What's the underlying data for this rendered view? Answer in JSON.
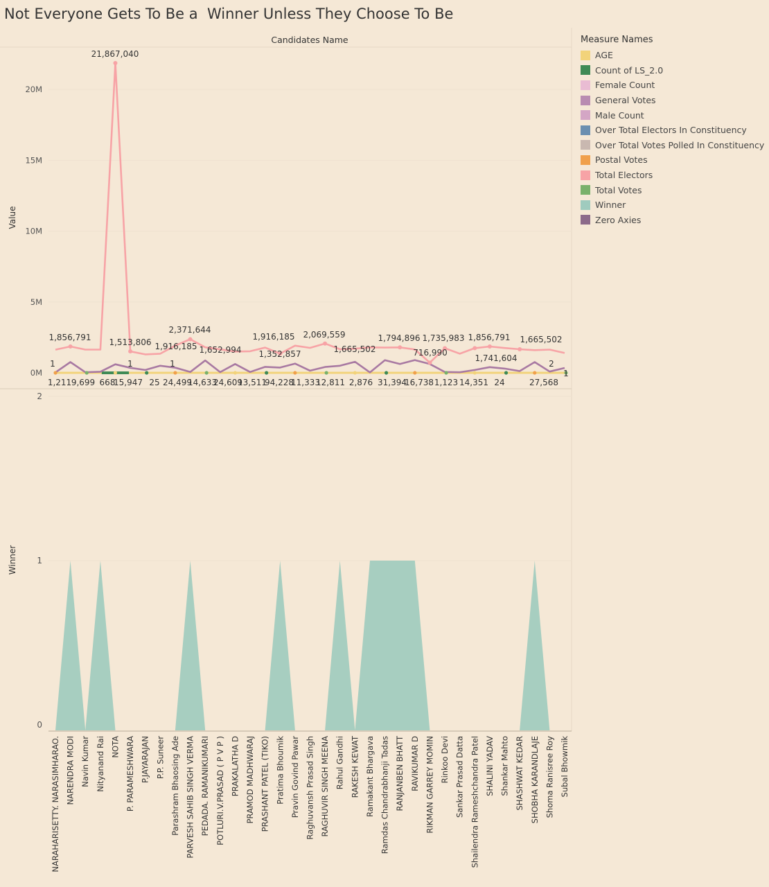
{
  "title": "Not Everyone Gets To Be a  Winner Unless They Choose To Be",
  "chart_data": {
    "type": "line",
    "column_header": "Candidates Name",
    "categories": [
      "NARAHARISETTY. NARASIMHARAO.",
      "NARENDRA MODI",
      "Navin Kumar",
      "Nityanand Rai",
      "NOTA",
      "P. PARAMESHWARA",
      "P.JAYARAJAN",
      "P.P. Suneer",
      "Parashram Bhaosing Ade",
      "PARVESH SAHIB SINGH VERMA",
      "PEDADA. RAMANIKUMARI",
      "POTLURI.V.PRASAD ( P V P )",
      "PRAKALATHA D",
      "PRAMOD MADHWARAJ",
      "PRASHANT PATEL (TIKO)",
      "Pratima Bhoumik",
      "Pravin Govind Pawar",
      "Raghuvansh Prasad Singh",
      "RAGHUVIR SINGH MEENA",
      "Rahul Gandhi",
      "RAKESH KEWAT",
      "Ramakant Bhargava",
      "Ramdas Chandrabhanji Tadas",
      "RANJANBEN BHATT",
      "RAVIKUMAR D",
      "RIKMAN GARREY MOMIN",
      "Rinkoo Devi",
      "Sankar Prasad Datta",
      "Shailendra Rameshchandra Patel",
      "SHALINI YADAV",
      "Shankar Mahto",
      "SHASHWAT KEDAR",
      "SHOBHA KARANDLAJE",
      "Shoma Ranisree Roy",
      "Subal Bhowmik"
    ],
    "panels": [
      {
        "ylabel": "Value",
        "y_ticks": [
          "0M",
          "5M",
          "10M",
          "15M",
          "20M"
        ],
        "ylim": [
          0,
          22800000
        ],
        "series": [
          {
            "name": "Total Electors",
            "color": "#f7a3a6",
            "values": [
              1636000,
              1856791,
              1640000,
              1640000,
              21867040,
              1513806,
              1300000,
              1350000,
              1916185,
              2371644,
              1800000,
              1652994,
              1500000,
              1520000,
              1780000,
              1352857,
              1916185,
              1760000,
              2069559,
              1665502,
              1700000,
              1794896,
              1780000,
              1794896,
              1650000,
              716990,
              1735983,
              1350000,
              1741604,
              1856791,
              1750000,
              1665502,
              1600000,
              1640000,
              1400000
            ]
          },
          {
            "name": "General Votes",
            "color": "#a879a2",
            "values": [
              30000,
              760000,
              40000,
              80000,
              600000,
              350000,
              200000,
              500000,
              360000,
              60000,
              870000,
              50000,
              620000,
              60000,
              420000,
              370000,
              650000,
              150000,
              410000,
              500000,
              780000,
              30000,
              890000,
              620000,
              900000,
              620000,
              60000,
              40000,
              200000,
              400000,
              300000,
              120000,
              760000,
              90000,
              340000
            ]
          }
        ],
        "markers": [
          {
            "name": "AGE",
            "color": "#f2d37a"
          },
          {
            "name": "Count of LS_2.0",
            "color": "#3f8a55"
          },
          {
            "name": "Postal Votes",
            "color": "#f0a04b"
          },
          {
            "name": "Total Votes",
            "color": "#79b16b"
          }
        ],
        "labels_top": [
          "1,856,791",
          "21,867,040",
          "1,513,806",
          "1,916,185",
          "2,371,644",
          "1,652,994",
          "1,916,185",
          "1,352,857",
          "2,069,559",
          "1,665,502",
          "1,794,896",
          "716,990",
          "1,735,983",
          "1,856,791",
          "1,741,604",
          "1,665,502"
        ],
        "labels_small": [
          "1",
          "1",
          "1",
          "2",
          "1"
        ],
        "labels_bottom": [
          "1,211",
          "9,699",
          "668",
          "15,947",
          "25",
          "24,499",
          "14,633",
          "24,609",
          "13,511",
          "94,228",
          "11,333",
          "12,811",
          "2,876",
          "31,394",
          "16,738",
          "1,123",
          "14,351",
          "24",
          "27,568"
        ]
      },
      {
        "ylabel": "Winner",
        "y_ticks": [
          "0",
          "1",
          "2"
        ],
        "ylim": [
          0,
          2
        ],
        "series": [
          {
            "name": "Winner",
            "color": "#9fcbbe",
            "values": [
              0,
              1,
              0,
              1,
              0,
              0,
              0,
              0,
              0,
              1,
              0,
              0,
              0,
              0,
              0,
              1,
              0,
              0,
              0,
              1,
              0,
              1,
              1,
              1,
              1,
              0,
              0,
              0,
              0,
              0,
              0,
              0,
              1,
              0,
              0
            ]
          }
        ]
      }
    ]
  },
  "legend": {
    "title": "Measure Names",
    "items": [
      {
        "label": "AGE",
        "color": "#f2d37a"
      },
      {
        "label": "Count of LS_2.0",
        "color": "#3f8a55"
      },
      {
        "label": "Female Count",
        "color": "#e9bcd3"
      },
      {
        "label": "General Votes",
        "color": "#b98cb1"
      },
      {
        "label": "Male Count",
        "color": "#d4a6c5"
      },
      {
        "label": "Over Total Electors  In Constituency",
        "color": "#6b8fb0"
      },
      {
        "label": "Over Total Votes Polled  In Constituency",
        "color": "#c9b8b0"
      },
      {
        "label": "Postal Votes",
        "color": "#f0a04b"
      },
      {
        "label": "Total Electors",
        "color": "#f7a3a6"
      },
      {
        "label": "Total Votes",
        "color": "#79b16b"
      },
      {
        "label": "Winner",
        "color": "#9fcbbe"
      },
      {
        "label": "Zero Axies",
        "color": "#8c6a8a"
      }
    ]
  }
}
